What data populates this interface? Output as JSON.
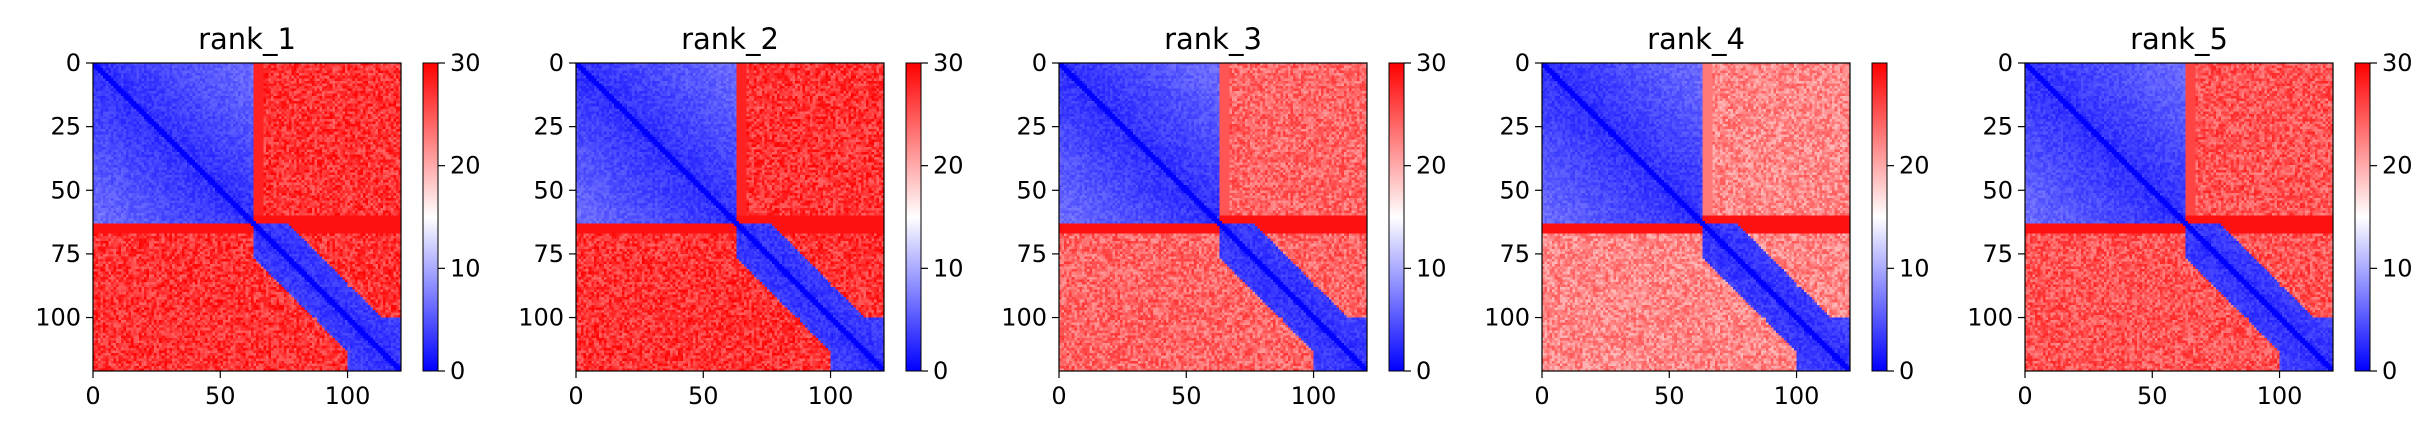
{
  "chart_data": [
    {
      "type": "heatmap",
      "title": "rank_1",
      "colormap": "bwr",
      "clim": [
        0,
        30
      ],
      "x_range": [
        0,
        121
      ],
      "y_range": [
        0,
        121
      ],
      "y_inverted": true,
      "x_ticks": [
        "0",
        "50",
        "100"
      ],
      "y_ticks": [
        "0",
        "25",
        "50",
        "75",
        "100"
      ],
      "colorbar_ticks": [
        "0",
        "10",
        "20",
        "30"
      ],
      "domain_boundaries": [
        63,
        75,
        88,
        100
      ],
      "interdomain_level": 27
    },
    {
      "type": "heatmap",
      "title": "rank_2",
      "colormap": "bwr",
      "clim": [
        0,
        30
      ],
      "x_range": [
        0,
        121
      ],
      "y_range": [
        0,
        121
      ],
      "y_inverted": true,
      "x_ticks": [
        "0",
        "50",
        "100"
      ],
      "y_ticks": [
        "0",
        "25",
        "50",
        "75",
        "100"
      ],
      "colorbar_ticks": [
        "0",
        "10",
        "20",
        "30"
      ],
      "domain_boundaries": [
        63,
        75,
        88,
        100
      ],
      "interdomain_level": 27
    },
    {
      "type": "heatmap",
      "title": "rank_3",
      "colormap": "bwr",
      "clim": [
        0,
        30
      ],
      "x_range": [
        0,
        121
      ],
      "y_range": [
        0,
        121
      ],
      "y_inverted": true,
      "x_ticks": [
        "0",
        "50",
        "100"
      ],
      "y_ticks": [
        "0",
        "25",
        "50",
        "75",
        "100"
      ],
      "colorbar_ticks": [
        "0",
        "10",
        "20",
        "30"
      ],
      "domain_boundaries": [
        63,
        75,
        88,
        100
      ],
      "interdomain_level": 24
    },
    {
      "type": "heatmap",
      "title": "rank_4",
      "colormap": "bwr",
      "clim": [
        0,
        30
      ],
      "x_range": [
        0,
        121
      ],
      "y_range": [
        0,
        121
      ],
      "y_inverted": true,
      "x_ticks": [
        "0",
        "50",
        "100"
      ],
      "y_ticks": [
        "0",
        "25",
        "50",
        "75",
        "100"
      ],
      "colorbar_ticks": [
        "0",
        "10",
        "20"
      ],
      "domain_boundaries": [
        63,
        75,
        88,
        100
      ],
      "interdomain_level": 22
    },
    {
      "type": "heatmap",
      "title": "rank_5",
      "colormap": "bwr",
      "clim": [
        0,
        30
      ],
      "x_range": [
        0,
        121
      ],
      "y_range": [
        0,
        121
      ],
      "y_inverted": true,
      "x_ticks": [
        "0",
        "50",
        "100"
      ],
      "y_ticks": [
        "0",
        "25",
        "50",
        "75",
        "100"
      ],
      "colorbar_ticks": [
        "0",
        "10",
        "20",
        "30"
      ],
      "domain_boundaries": [
        63,
        75,
        88,
        100
      ],
      "interdomain_level": 25
    }
  ]
}
